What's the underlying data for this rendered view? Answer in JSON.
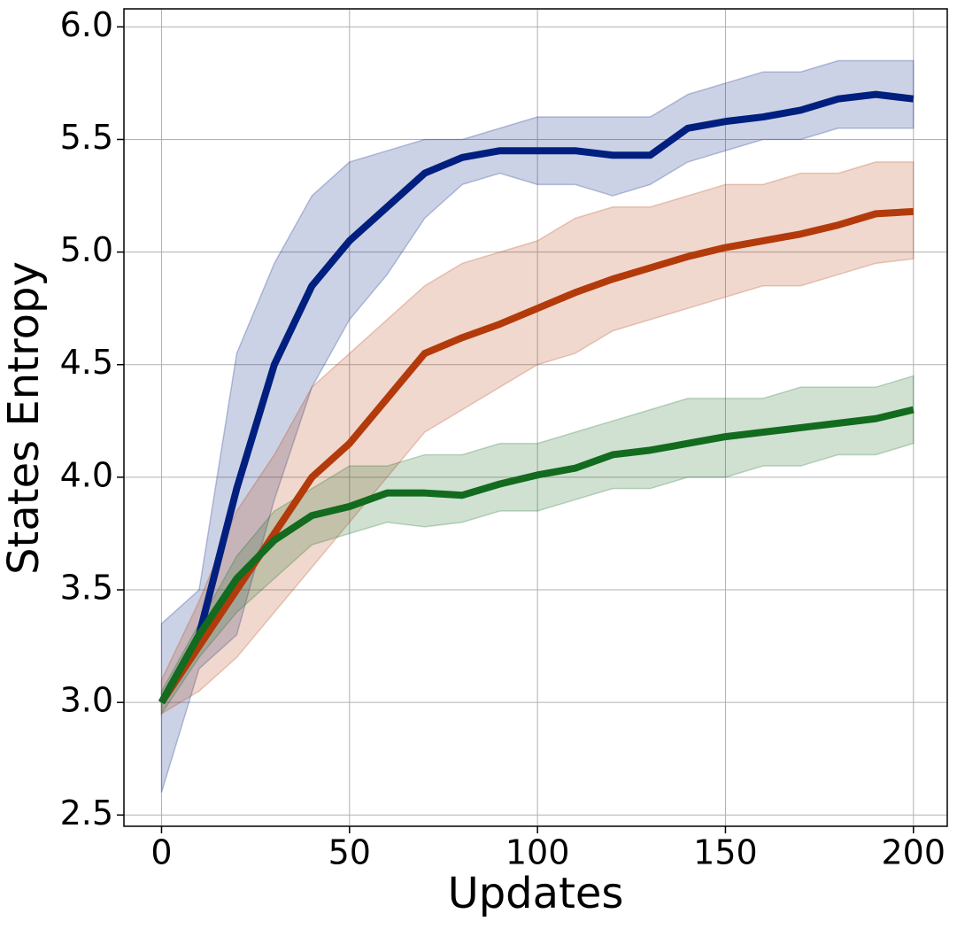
{
  "chart_data": {
    "type": "line",
    "xlabel": "Updates",
    "ylabel": "States Entropy",
    "x": [
      0,
      10,
      20,
      30,
      40,
      50,
      60,
      70,
      80,
      90,
      100,
      110,
      120,
      130,
      140,
      150,
      160,
      170,
      180,
      190,
      200
    ],
    "series": [
      {
        "color": "#001f7f",
        "values": [
          3.0,
          3.3,
          3.95,
          4.5,
          4.85,
          5.05,
          5.2,
          5.35,
          5.42,
          5.45,
          5.45,
          5.45,
          5.43,
          5.43,
          5.55,
          5.58,
          5.6,
          5.63,
          5.68,
          5.7,
          5.68
        ],
        "lower": [
          2.6,
          3.15,
          3.3,
          3.9,
          4.4,
          4.7,
          4.9,
          5.15,
          5.3,
          5.35,
          5.3,
          5.3,
          5.25,
          5.3,
          5.4,
          5.45,
          5.5,
          5.5,
          5.55,
          5.55,
          5.55
        ],
        "upper": [
          3.35,
          3.5,
          4.55,
          4.95,
          5.25,
          5.4,
          5.45,
          5.5,
          5.5,
          5.55,
          5.6,
          5.6,
          5.6,
          5.6,
          5.7,
          5.75,
          5.8,
          5.8,
          5.85,
          5.85,
          5.85
        ]
      },
      {
        "color": "#b33a0a",
        "values": [
          3.0,
          3.25,
          3.5,
          3.75,
          4.0,
          4.15,
          4.35,
          4.55,
          4.62,
          4.68,
          4.75,
          4.82,
          4.88,
          4.93,
          4.98,
          5.02,
          5.05,
          5.08,
          5.12,
          5.17,
          5.18
        ],
        "lower": [
          2.95,
          3.05,
          3.2,
          3.4,
          3.6,
          3.8,
          4.0,
          4.2,
          4.3,
          4.4,
          4.5,
          4.55,
          4.65,
          4.7,
          4.75,
          4.8,
          4.85,
          4.85,
          4.9,
          4.95,
          4.97
        ],
        "upper": [
          3.1,
          3.45,
          3.85,
          4.1,
          4.4,
          4.55,
          4.7,
          4.85,
          4.95,
          5.0,
          5.05,
          5.15,
          5.2,
          5.2,
          5.25,
          5.3,
          5.3,
          5.35,
          5.35,
          5.4,
          5.4
        ]
      },
      {
        "color": "#126b1e",
        "values": [
          3.0,
          3.3,
          3.55,
          3.72,
          3.83,
          3.87,
          3.93,
          3.93,
          3.92,
          3.97,
          4.01,
          4.04,
          4.1,
          4.12,
          4.15,
          4.18,
          4.2,
          4.22,
          4.24,
          4.26,
          4.3
        ],
        "lower": [
          2.95,
          3.2,
          3.4,
          3.55,
          3.7,
          3.75,
          3.8,
          3.78,
          3.8,
          3.85,
          3.85,
          3.9,
          3.95,
          3.95,
          4.0,
          4.0,
          4.05,
          4.05,
          4.1,
          4.1,
          4.15
        ],
        "upper": [
          3.05,
          3.35,
          3.65,
          3.85,
          3.95,
          4.05,
          4.05,
          4.1,
          4.1,
          4.15,
          4.15,
          4.2,
          4.25,
          4.3,
          4.35,
          4.35,
          4.35,
          4.4,
          4.4,
          4.4,
          4.45
        ]
      }
    ],
    "xlim": [
      -10,
      209
    ],
    "ylim": [
      2.45,
      6.08
    ],
    "xticks": [
      0,
      50,
      100,
      150,
      200
    ],
    "yticks": [
      {
        "value": 2.5,
        "label": "2.5"
      },
      {
        "value": 3.0,
        "label": "3.0"
      },
      {
        "value": 3.5,
        "label": "3.5"
      },
      {
        "value": 4.0,
        "label": "4.0"
      },
      {
        "value": 4.5,
        "label": "4.5"
      },
      {
        "value": 5.0,
        "label": "5.0"
      },
      {
        "value": 5.5,
        "label": "5.5"
      },
      {
        "value": 6.0,
        "label": "6.0"
      }
    ],
    "grid": true
  }
}
